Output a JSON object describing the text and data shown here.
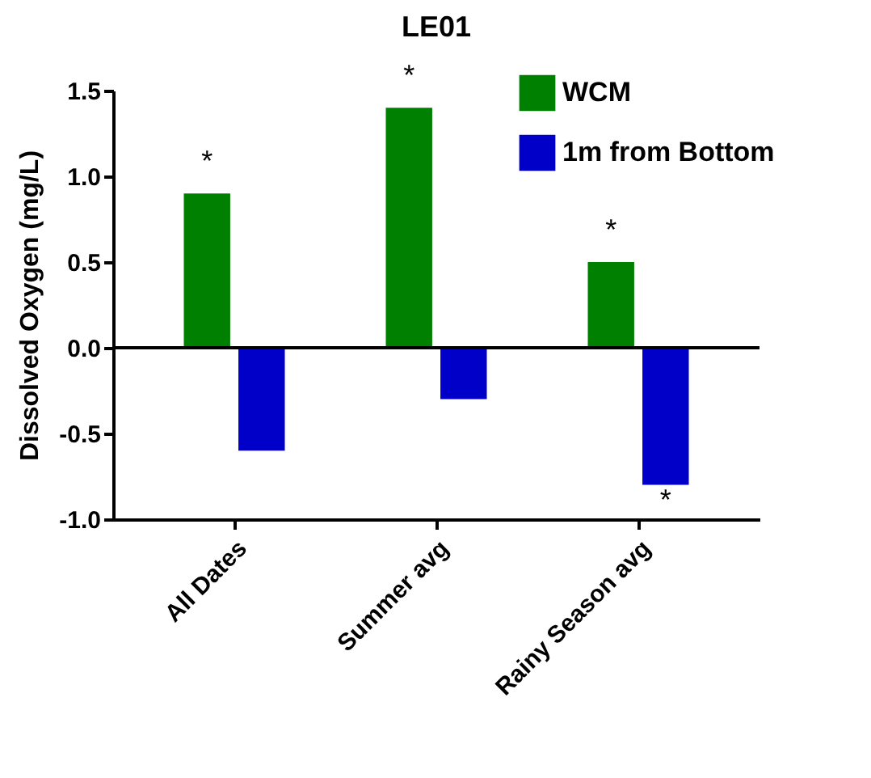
{
  "chart_data": {
    "type": "bar",
    "title": "LE01",
    "ylabel": "Dissolved Oxygen (mg/L)",
    "categories": [
      "All Dates",
      "Summer avg",
      "Rainy Season avg"
    ],
    "series": [
      {
        "name": "WCM",
        "color": "#008000",
        "values": [
          0.9,
          1.4,
          0.5
        ]
      },
      {
        "name": "1m from Bottom",
        "color": "#0000c8",
        "values": [
          -0.6,
          -0.3,
          -0.8
        ]
      }
    ],
    "ylim": [
      -1.0,
      1.5
    ],
    "yticks": [
      {
        "value": -1,
        "label": "-1.0"
      },
      {
        "value": -0.5,
        "label": "-0.5"
      },
      {
        "value": 0,
        "label": "0.0"
      },
      {
        "value": 0.5,
        "label": "0.5"
      },
      {
        "value": 1,
        "label": "1.0"
      },
      {
        "value": 1.5,
        "label": "1.5"
      }
    ],
    "ref_lines": [
      {
        "axis": "y",
        "value": 0
      }
    ],
    "annotations": [
      {
        "text": "*",
        "x": "All Dates",
        "y": 0.9
      },
      {
        "text": "*",
        "x": "Summer avg",
        "y": 1.4
      },
      {
        "text": "*",
        "x": "Rainy Season avg",
        "y": 0.5
      },
      {
        "text": "*",
        "x": "Rainy Season avg",
        "y": -0.8
      }
    ],
    "legend": "top right",
    "grid": false
  }
}
